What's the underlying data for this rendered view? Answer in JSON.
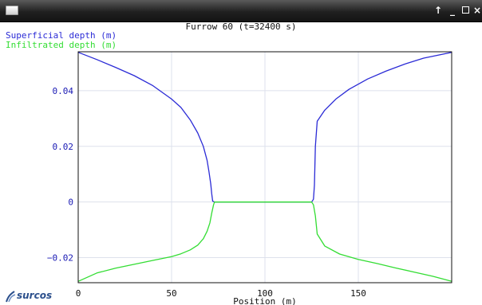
{
  "window": {
    "title": "",
    "buttons": {
      "raise": "↑",
      "minimize": "_",
      "close": "×"
    }
  },
  "app": {
    "logo_text": "surcos"
  },
  "colors": {
    "superficial": "#2b2bd6",
    "infiltrated": "#33dd33",
    "grid": "#dde1ec",
    "axis_text_y": "#1a1ab4"
  },
  "chart_data": {
    "type": "line",
    "title": "Furrow 60 (t=32400 s)",
    "xlabel": "Position (m)",
    "ylabel": "",
    "xlim": [
      0,
      200
    ],
    "ylim": [
      -0.029,
      0.054
    ],
    "x_ticks": [
      {
        "value": 0,
        "label": "0"
      },
      {
        "value": 50,
        "label": "50"
      },
      {
        "value": 100,
        "label": "100"
      },
      {
        "value": 150,
        "label": "150"
      }
    ],
    "y_ticks": [
      {
        "value": 0.04,
        "label": "0.04"
      },
      {
        "value": 0.02,
        "label": "0.02"
      },
      {
        "value": 0,
        "label": "0"
      },
      {
        "value": -0.02,
        "label": "−0.02"
      }
    ],
    "grid": true,
    "legend_placement": "top-left",
    "series": [
      {
        "name": "Superficial depth (m)",
        "x": [
          0,
          10,
          20,
          30,
          40,
          50,
          55,
          60,
          64,
          67,
          69,
          70,
          71,
          71.5,
          72,
          73,
          100,
          125,
          126,
          126.5,
          127,
          128,
          132,
          138,
          145,
          155,
          165,
          175,
          185,
          200
        ],
        "y": [
          0.0538,
          0.0512,
          0.0484,
          0.0454,
          0.0418,
          0.037,
          0.034,
          0.0295,
          0.0248,
          0.02,
          0.015,
          0.011,
          0.0065,
          0.003,
          0.0003,
          0,
          0,
          0,
          0.001,
          0.006,
          0.02,
          0.029,
          0.033,
          0.037,
          0.0405,
          0.0442,
          0.0471,
          0.0496,
          0.0517,
          0.0538
        ]
      },
      {
        "name": "Infiltrated depth (m)",
        "x": [
          0,
          10,
          20,
          30,
          40,
          50,
          55,
          60,
          64,
          67,
          69,
          70.5,
          71.5,
          72.5,
          73,
          100,
          125,
          126,
          127,
          128,
          132,
          140,
          150,
          160,
          170,
          180,
          190,
          200
        ],
        "y": [
          -0.0285,
          -0.0255,
          -0.0238,
          -0.0224,
          -0.021,
          -0.0196,
          -0.0186,
          -0.0172,
          -0.0155,
          -0.0132,
          -0.0105,
          -0.0075,
          -0.004,
          -0.001,
          0,
          0,
          0,
          -0.001,
          -0.005,
          -0.0115,
          -0.0158,
          -0.0187,
          -0.0206,
          -0.0221,
          -0.0237,
          -0.0252,
          -0.0267,
          -0.0285
        ]
      }
    ]
  }
}
